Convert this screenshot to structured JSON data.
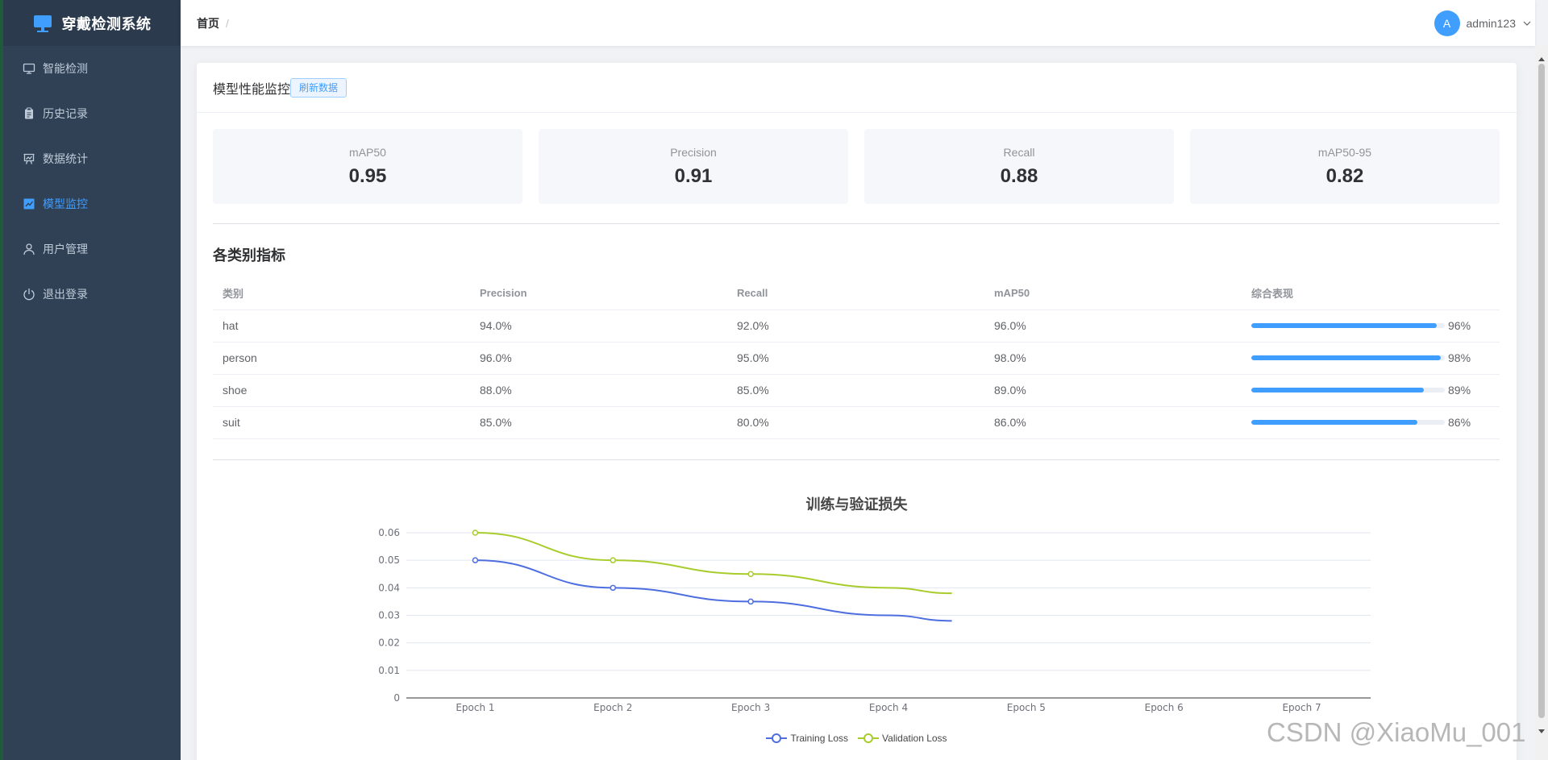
{
  "brand": {
    "title": "穿戴检测系统"
  },
  "sidebar": {
    "items": [
      {
        "label": "智能检测",
        "icon": "monitor-icon"
      },
      {
        "label": "历史记录",
        "icon": "clipboard-icon"
      },
      {
        "label": "数据统计",
        "icon": "presentation-chart-icon"
      },
      {
        "label": "模型监控",
        "icon": "trend-chart-icon"
      },
      {
        "label": "用户管理",
        "icon": "user-icon"
      },
      {
        "label": "退出登录",
        "icon": "power-icon"
      }
    ]
  },
  "header": {
    "breadcrumb": {
      "home": "首页",
      "separator": "/"
    },
    "user": {
      "avatar_letter": "A",
      "name": "admin123"
    }
  },
  "card": {
    "title": "模型性能监控",
    "refresh_label": "刷新数据"
  },
  "metrics": [
    {
      "label": "mAP50",
      "value": "0.95"
    },
    {
      "label": "Precision",
      "value": "0.91"
    },
    {
      "label": "Recall",
      "value": "0.88"
    },
    {
      "label": "mAP50-95",
      "value": "0.82"
    }
  ],
  "class_metrics": {
    "title": "各类别指标",
    "columns": [
      "类别",
      "Precision",
      "Recall",
      "mAP50",
      "综合表现"
    ],
    "rows": [
      {
        "name": "hat",
        "precision": "94.0%",
        "recall": "92.0%",
        "map50": "96.0%",
        "overall": 0.96,
        "overall_text": "96%"
      },
      {
        "name": "person",
        "precision": "96.0%",
        "recall": "95.0%",
        "map50": "98.0%",
        "overall": 0.98,
        "overall_text": "98%"
      },
      {
        "name": "shoe",
        "precision": "88.0%",
        "recall": "85.0%",
        "map50": "89.0%",
        "overall": 0.89,
        "overall_text": "89%"
      },
      {
        "name": "suit",
        "precision": "85.0%",
        "recall": "80.0%",
        "map50": "86.0%",
        "overall": 0.86,
        "overall_text": "86%"
      }
    ]
  },
  "chart_data": {
    "type": "line",
    "title": "训练与验证损失",
    "categories": [
      "Epoch 1",
      "Epoch 2",
      "Epoch 3",
      "Epoch 4",
      "Epoch 5",
      "Epoch 6",
      "Epoch 7"
    ],
    "yticks": [
      "0",
      "0.01",
      "0.02",
      "0.03",
      "0.04",
      "0.05",
      "0.06"
    ],
    "ylim": [
      0,
      0.06
    ],
    "grid": true,
    "legend_position": "bottom",
    "series": [
      {
        "name": "Training Loss",
        "color": "#4e6ee0",
        "x": [
          0,
          1,
          2,
          3,
          3.46
        ],
        "values": [
          0.05,
          0.04,
          0.035,
          0.03,
          0.028
        ]
      },
      {
        "name": "Validation Loss",
        "color": "#a8cc2c",
        "x": [
          0,
          1,
          2,
          3,
          3.46
        ],
        "values": [
          0.06,
          0.05,
          0.045,
          0.04,
          0.038
        ]
      }
    ]
  },
  "watermark": "CSDN @XiaoMu_001"
}
